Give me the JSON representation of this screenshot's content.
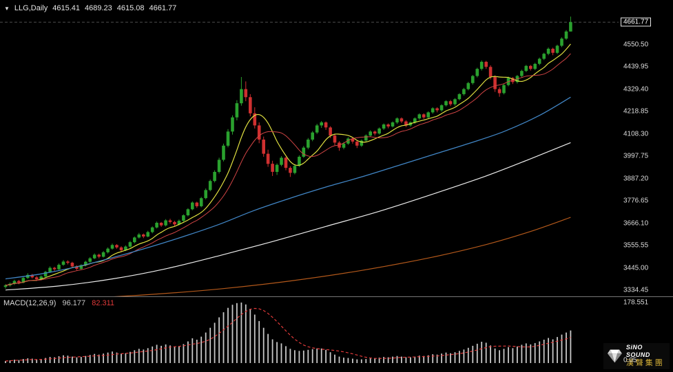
{
  "header": {
    "collapse_icon": "▼",
    "symbol": "LLG,Daily",
    "open": "4615.41",
    "high": "4689.23",
    "low": "4615.08",
    "close": "4661.77"
  },
  "price_axis": {
    "current_price": "4661.77",
    "labels": [
      "4550.50",
      "4439.95",
      "4329.40",
      "4218.85",
      "4108.30",
      "3997.75",
      "3887.20",
      "3776.65",
      "3666.10",
      "3555.55",
      "3445.00",
      "3334.45"
    ]
  },
  "macd_panel": {
    "label": "MACD(12,26,9)",
    "macd_value": "96.177",
    "signal_value": "82.311",
    "axis_top": "178.551",
    "axis_bottom": "0.05"
  },
  "logo": {
    "brand": "SiNO SOUND",
    "chinese": "漢聲集團"
  },
  "colors": {
    "background": "#000000",
    "bull": "#2aa12e",
    "bear": "#cf3030",
    "ma_fast": "#e0e040",
    "ma_mid": "#d24545",
    "ma_blue": "#4186c6",
    "ma_white": "#ededed",
    "ma_orange": "#b4591b",
    "macd_bar": "#c8c8c8",
    "macd_signal": "#e23a3a",
    "axis_text": "#dcdcdc",
    "logo_gold": "#d4af37"
  },
  "chart_data": [
    {
      "type": "candlestick",
      "title": "LLG,Daily",
      "ylim": [
        3307,
        4710
      ],
      "bull_color": "#2aa12e",
      "bear_color": "#cf3030",
      "grid": false,
      "ohlc": [
        [
          3350,
          3364,
          3342,
          3358
        ],
        [
          3358,
          3372,
          3352,
          3366
        ],
        [
          3366,
          3386,
          3360,
          3380
        ],
        [
          3380,
          3385,
          3364,
          3372
        ],
        [
          3372,
          3400,
          3368,
          3395
        ],
        [
          3395,
          3418,
          3390,
          3410
        ],
        [
          3410,
          3415,
          3392,
          3398
        ],
        [
          3398,
          3404,
          3380,
          3388
        ],
        [
          3388,
          3408,
          3383,
          3402
        ],
        [
          3402,
          3430,
          3398,
          3425
        ],
        [
          3425,
          3452,
          3420,
          3445
        ],
        [
          3445,
          3450,
          3430,
          3438
        ],
        [
          3438,
          3466,
          3434,
          3460
        ],
        [
          3460,
          3483,
          3455,
          3476
        ],
        [
          3476,
          3482,
          3462,
          3470
        ],
        [
          3470,
          3475,
          3445,
          3452
        ],
        [
          3452,
          3458,
          3432,
          3440
        ],
        [
          3440,
          3463,
          3436,
          3458
        ],
        [
          3458,
          3480,
          3452,
          3475
        ],
        [
          3475,
          3498,
          3470,
          3492
        ],
        [
          3492,
          3516,
          3488,
          3510
        ],
        [
          3510,
          3515,
          3492,
          3500
        ],
        [
          3500,
          3528,
          3496,
          3522
        ],
        [
          3522,
          3546,
          3516,
          3540
        ],
        [
          3540,
          3565,
          3535,
          3558
        ],
        [
          3558,
          3562,
          3540,
          3546
        ],
        [
          3546,
          3552,
          3524,
          3532
        ],
        [
          3532,
          3556,
          3528,
          3550
        ],
        [
          3550,
          3578,
          3545,
          3572
        ],
        [
          3572,
          3600,
          3566,
          3595
        ],
        [
          3595,
          3618,
          3590,
          3610
        ],
        [
          3610,
          3615,
          3592,
          3600
        ],
        [
          3600,
          3628,
          3596,
          3622
        ],
        [
          3622,
          3650,
          3616,
          3645
        ],
        [
          3645,
          3674,
          3640,
          3668
        ],
        [
          3668,
          3672,
          3648,
          3655
        ],
        [
          3655,
          3686,
          3650,
          3680
        ],
        [
          3680,
          3688,
          3664,
          3672
        ],
        [
          3672,
          3678,
          3652,
          3660
        ],
        [
          3660,
          3684,
          3655,
          3678
        ],
        [
          3678,
          3710,
          3672,
          3705
        ],
        [
          3705,
          3740,
          3700,
          3735
        ],
        [
          3735,
          3774,
          3730,
          3768
        ],
        [
          3768,
          3772,
          3742,
          3750
        ],
        [
          3750,
          3796,
          3745,
          3790
        ],
        [
          3790,
          3838,
          3784,
          3830
        ],
        [
          3830,
          3882,
          3824,
          3875
        ],
        [
          3875,
          3928,
          3868,
          3920
        ],
        [
          3920,
          3990,
          3912,
          3980
        ],
        [
          3980,
          4060,
          3972,
          4050
        ],
        [
          4050,
          4132,
          4042,
          4120
        ],
        [
          4120,
          4200,
          4105,
          4190
        ],
        [
          4190,
          4275,
          4175,
          4260
        ],
        [
          4260,
          4390,
          4248,
          4330
        ],
        [
          4330,
          4368,
          4270,
          4290
        ],
        [
          4290,
          4305,
          4195,
          4210
        ],
        [
          4210,
          4240,
          4135,
          4150
        ],
        [
          4150,
          4165,
          4062,
          4080
        ],
        [
          4080,
          4095,
          3995,
          4010
        ],
        [
          4010,
          4030,
          3945,
          3960
        ],
        [
          3960,
          3975,
          3900,
          3920
        ],
        [
          3920,
          3962,
          3905,
          3955
        ],
        [
          3955,
          3998,
          3948,
          3990
        ],
        [
          3990,
          3995,
          3928,
          3940
        ],
        [
          3940,
          3948,
          3895,
          3915
        ],
        [
          3915,
          3958,
          3908,
          3950
        ],
        [
          3950,
          4002,
          3944,
          3995
        ],
        [
          3995,
          4048,
          3990,
          4040
        ],
        [
          4040,
          4088,
          4032,
          4080
        ],
        [
          4080,
          4122,
          4072,
          4115
        ],
        [
          4115,
          4158,
          4108,
          4150
        ],
        [
          4150,
          4172,
          4138,
          4165
        ],
        [
          4165,
          4170,
          4128,
          4140
        ],
        [
          4140,
          4146,
          4088,
          4100
        ],
        [
          4100,
          4108,
          4052,
          4065
        ],
        [
          4065,
          4072,
          4025,
          4040
        ],
        [
          4040,
          4068,
          4032,
          4060
        ],
        [
          4060,
          4092,
          4054,
          4085
        ],
        [
          4085,
          4090,
          4060,
          4070
        ],
        [
          4070,
          4076,
          4038,
          4050
        ],
        [
          4050,
          4080,
          4044,
          4075
        ],
        [
          4075,
          4106,
          4070,
          4100
        ],
        [
          4100,
          4126,
          4094,
          4120
        ],
        [
          4120,
          4125,
          4100,
          4110
        ],
        [
          4110,
          4140,
          4105,
          4135
        ],
        [
          4135,
          4160,
          4128,
          4155
        ],
        [
          4155,
          4160,
          4136,
          4145
        ],
        [
          4145,
          4170,
          4140,
          4165
        ],
        [
          4165,
          4190,
          4158,
          4185
        ],
        [
          4185,
          4190,
          4162,
          4170
        ],
        [
          4170,
          4176,
          4142,
          4150
        ],
        [
          4150,
          4170,
          4144,
          4165
        ],
        [
          4165,
          4190,
          4158,
          4185
        ],
        [
          4185,
          4210,
          4178,
          4205
        ],
        [
          4205,
          4210,
          4182,
          4190
        ],
        [
          4190,
          4220,
          4184,
          4215
        ],
        [
          4215,
          4240,
          4208,
          4235
        ],
        [
          4235,
          4240,
          4215,
          4225
        ],
        [
          4225,
          4255,
          4218,
          4250
        ],
        [
          4250,
          4275,
          4244,
          4270
        ],
        [
          4270,
          4276,
          4246,
          4255
        ],
        [
          4255,
          4285,
          4248,
          4280
        ],
        [
          4280,
          4310,
          4274,
          4305
        ],
        [
          4305,
          4336,
          4298,
          4330
        ],
        [
          4330,
          4366,
          4324,
          4360
        ],
        [
          4360,
          4400,
          4352,
          4395
        ],
        [
          4395,
          4436,
          4388,
          4430
        ],
        [
          4430,
          4472,
          4422,
          4465
        ],
        [
          4465,
          4470,
          4430,
          4440
        ],
        [
          4440,
          4448,
          4378,
          4390
        ],
        [
          4390,
          4398,
          4316,
          4330
        ],
        [
          4330,
          4340,
          4292,
          4310
        ],
        [
          4310,
          4356,
          4304,
          4350
        ],
        [
          4350,
          4392,
          4344,
          4385
        ],
        [
          4385,
          4390,
          4355,
          4365
        ],
        [
          4365,
          4400,
          4358,
          4395
        ],
        [
          4395,
          4426,
          4388,
          4420
        ],
        [
          4420,
          4450,
          4414,
          4445
        ],
        [
          4445,
          4450,
          4422,
          4430
        ],
        [
          4430,
          4460,
          4424,
          4455
        ],
        [
          4455,
          4486,
          4448,
          4480
        ],
        [
          4480,
          4510,
          4474,
          4505
        ],
        [
          4505,
          4536,
          4498,
          4530
        ],
        [
          4530,
          4535,
          4498,
          4510
        ],
        [
          4510,
          4550,
          4504,
          4545
        ],
        [
          4545,
          4586,
          4538,
          4580
        ],
        [
          4580,
          4622,
          4574,
          4615.41
        ],
        [
          4615.41,
          4689.23,
          4615.08,
          4661.77
        ]
      ],
      "overlays": [
        {
          "name": "ma-fast-yellow",
          "type": "sma_close",
          "period": 8,
          "color": "#e0e040",
          "width": 1.2
        },
        {
          "name": "ma-mid-red",
          "type": "sma_close",
          "period": 13,
          "color": "#d24545",
          "width": 1
        },
        {
          "name": "ma-blue",
          "type": "points",
          "color": "#4186c6",
          "width": 1.3,
          "points": [
            [
              0,
              3390
            ],
            [
              8,
              3415
            ],
            [
              16,
              3450
            ],
            [
              24,
              3495
            ],
            [
              32,
              3545
            ],
            [
              40,
              3600
            ],
            [
              48,
              3660
            ],
            [
              56,
              3730
            ],
            [
              64,
              3790
            ],
            [
              72,
              3845
            ],
            [
              80,
              3895
            ],
            [
              88,
              3950
            ],
            [
              96,
              4005
            ],
            [
              104,
              4060
            ],
            [
              112,
              4120
            ],
            [
              120,
              4200
            ],
            [
              127,
              4290
            ]
          ]
        },
        {
          "name": "ma-white",
          "type": "points",
          "color": "#ededed",
          "width": 1.2,
          "points": [
            [
              0,
              3335
            ],
            [
              12,
              3355
            ],
            [
              24,
              3390
            ],
            [
              36,
              3440
            ],
            [
              48,
              3505
            ],
            [
              60,
              3575
            ],
            [
              72,
              3650
            ],
            [
              84,
              3725
            ],
            [
              96,
              3810
            ],
            [
              108,
              3900
            ],
            [
              118,
              3985
            ],
            [
              127,
              4065
            ]
          ]
        },
        {
          "name": "ma-orange",
          "type": "points",
          "color": "#b4591b",
          "width": 1.2,
          "points": [
            [
              0,
              3278
            ],
            [
              16,
              3292
            ],
            [
              32,
              3312
            ],
            [
              48,
              3340
            ],
            [
              64,
              3380
            ],
            [
              80,
              3432
            ],
            [
              96,
              3498
            ],
            [
              108,
              3560
            ],
            [
              118,
              3625
            ],
            [
              127,
              3695
            ]
          ]
        }
      ]
    },
    {
      "type": "bar",
      "title": "MACD(12,26,9)",
      "ylim": [
        0,
        190
      ],
      "axis_top_value": 178.551,
      "current_macd": 96.177,
      "current_signal": 82.311,
      "bar_color": "#c8c8c8",
      "signal": {
        "type": "sma",
        "period": 9,
        "color": "#e23a3a"
      },
      "values": [
        6,
        8,
        10,
        9,
        12,
        14,
        13,
        11,
        12,
        15,
        18,
        17,
        20,
        23,
        22,
        19,
        17,
        18,
        21,
        24,
        27,
        25,
        28,
        31,
        34,
        31,
        28,
        29,
        33,
        38,
        42,
        40,
        44,
        49,
        54,
        51,
        55,
        52,
        48,
        50,
        56,
        64,
        73,
        69,
        78,
        90,
        104,
        119,
        135,
        150,
        163,
        172,
        177,
        178.551,
        173,
        160,
        143,
        124,
        104,
        86,
        70,
        62,
        58,
        50,
        42,
        38,
        36,
        37,
        39,
        41,
        43,
        43,
        39,
        32,
        25,
        19,
        16,
        15,
        13,
        11,
        11,
        12,
        14,
        14,
        16,
        18,
        17,
        19,
        21,
        19,
        17,
        17,
        19,
        22,
        21,
        23,
        26,
        25,
        28,
        31,
        29,
        32,
        36,
        40,
        45,
        51,
        57,
        63,
        60,
        52,
        43,
        38,
        42,
        47,
        44,
        49,
        54,
        58,
        55,
        59,
        64,
        69,
        74,
        70,
        77,
        84,
        90,
        96.177
      ]
    }
  ]
}
